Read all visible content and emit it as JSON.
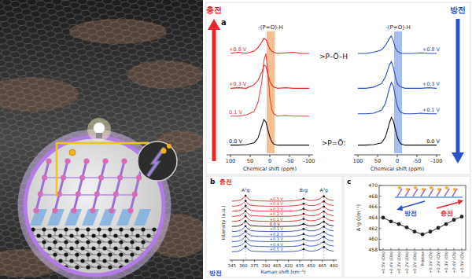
{
  "chart_data": [
    {
      "type": "line",
      "panel": "a",
      "title": "충전",
      "x_label": "Chemical shift (ppm)",
      "x": [
        100,
        80,
        60,
        40,
        30,
        20,
        15,
        10,
        5,
        0,
        -5,
        -10,
        -20,
        -40,
        -60,
        -80,
        -100
      ],
      "xlim": [
        110,
        -110
      ],
      "xticks": [
        100,
        50,
        0,
        -50,
        -100
      ],
      "ylim": [
        0,
        10.5
      ],
      "tick_labels": "x",
      "highlight": {
        "range": [
          8,
          -12
        ],
        "label": "-(P=O)-H"
      },
      "annotations": [
        ">P–Ö–H",
        ">P=Ö:"
      ],
      "series": [
        {
          "name": "+0.8 V",
          "color": "#e8262a",
          "values": [
            8.6,
            8.7,
            8.6,
            8.8,
            9.1,
            9.6,
            9.9,
            9.8,
            9.4,
            9.0,
            8.8,
            8.7,
            8.6,
            8.65,
            8.7,
            8.6,
            8.6
          ]
        },
        {
          "name": "+0.3 V",
          "color": "#e8262a",
          "values": [
            5.6,
            5.65,
            5.6,
            5.9,
            6.3,
            7.0,
            7.6,
            7.5,
            6.8,
            6.2,
            5.9,
            5.7,
            5.6,
            5.65,
            5.6,
            5.6,
            5.6
          ]
        },
        {
          "name": "0.1 V",
          "color": "#ee4444",
          "values": [
            3.2,
            3.2,
            3.3,
            3.6,
            4.4,
            6.2,
            8.0,
            8.6,
            7.0,
            4.8,
            3.8,
            3.4,
            3.2,
            3.25,
            3.2,
            3.2,
            3.2
          ]
        },
        {
          "name": "0.0 V",
          "color": "#111111",
          "values": [
            0.7,
            0.7,
            0.75,
            0.9,
            1.3,
            2.4,
            2.9,
            2.7,
            2.0,
            1.4,
            1.0,
            0.8,
            0.7,
            0.7,
            0.7,
            0.7,
            0.7
          ]
        }
      ]
    },
    {
      "type": "line",
      "title": "방전",
      "x_label": "Chemical shift (ppm)",
      "x": [
        100,
        80,
        60,
        40,
        30,
        20,
        15,
        10,
        5,
        0,
        -5,
        -10,
        -20,
        -40,
        -60,
        -80,
        -100
      ],
      "xlim": [
        110,
        -110
      ],
      "xticks": [
        100,
        50,
        0,
        -50,
        -100
      ],
      "ylim": [
        0,
        10.5
      ],
      "tick_labels": "x",
      "highlight": {
        "range": [
          8,
          -12
        ],
        "label": "-(P=O)-H"
      },
      "series": [
        {
          "name": "+0.8 V",
          "color": "#2b4fc7",
          "values": [
            8.6,
            8.6,
            8.7,
            8.9,
            9.3,
            9.9,
            10.1,
            9.7,
            9.1,
            8.8,
            8.7,
            8.6,
            8.6,
            8.6,
            8.65,
            8.6,
            8.6
          ]
        },
        {
          "name": "+0.3 V",
          "color": "#2b4fc7",
          "values": [
            5.6,
            5.6,
            5.7,
            6.0,
            6.6,
            7.6,
            7.9,
            7.4,
            6.6,
            6.0,
            5.8,
            5.7,
            5.6,
            5.6,
            5.6,
            5.65,
            5.6
          ]
        },
        {
          "name": "+0.1 V",
          "color": "#2b4fc7",
          "values": [
            3.4,
            3.4,
            3.45,
            3.7,
            4.3,
            5.6,
            6.1,
            5.8,
            4.9,
            4.1,
            3.7,
            3.5,
            3.4,
            3.4,
            3.45,
            3.4,
            3.4
          ]
        },
        {
          "name": "0.0 V",
          "color": "#111111",
          "values": [
            0.7,
            0.7,
            0.75,
            0.9,
            1.4,
            2.6,
            3.1,
            2.8,
            2.1,
            1.4,
            1.0,
            0.8,
            0.7,
            0.7,
            0.7,
            0.7,
            0.7
          ]
        }
      ]
    },
    {
      "type": "line",
      "panel": "b",
      "x_label": "Raman shift (cm⁻¹)",
      "y_label": "Intensity (a.u.)",
      "annotations": [
        "충전",
        "방전"
      ],
      "x": [
        345,
        352,
        357,
        360,
        363,
        366,
        370,
        380,
        395,
        410,
        425,
        433,
        437,
        440,
        443,
        448,
        455,
        461,
        464,
        467,
        470,
        474,
        480
      ],
      "xlim": [
        342,
        484
      ],
      "xticks": [
        345,
        360,
        375,
        390,
        405,
        420,
        435,
        450,
        465,
        480
      ],
      "ylim": [
        0,
        13
      ],
      "tick_labels": "x",
      "peaks": [
        {
          "x": 363,
          "label": "A¹g"
        },
        {
          "x": 440,
          "label": "B₂g"
        },
        {
          "x": 467,
          "label": "A²g"
        }
      ],
      "series": [
        {
          "name": "+0.5 V",
          "color": "#e8262a",
          "values": [
            10.35,
            10.4,
            10.6,
            10.9,
            11.3,
            10.85,
            10.5,
            10.4,
            10.35,
            10.35,
            10.4,
            10.5,
            10.65,
            10.8,
            10.65,
            10.45,
            10.5,
            10.75,
            11.05,
            11.2,
            10.9,
            10.6,
            10.45
          ]
        },
        {
          "name": "+0.4 V",
          "color": "#e8262a",
          "values": [
            9.45,
            9.5,
            9.7,
            10,
            10.4,
            9.95,
            9.6,
            9.5,
            9.45,
            9.45,
            9.5,
            9.6,
            9.75,
            9.9,
            9.75,
            9.55,
            9.6,
            9.85,
            10.15,
            10.3,
            10,
            9.7,
            9.55
          ]
        },
        {
          "name": "+0.3 V",
          "color": "#e8262a",
          "values": [
            8.55,
            8.6,
            8.8,
            9.1,
            9.5,
            9.05,
            8.7,
            8.6,
            8.55,
            8.55,
            8.6,
            8.7,
            8.85,
            9,
            8.85,
            8.65,
            8.7,
            8.95,
            9.25,
            9.4,
            9.1,
            8.8,
            8.65
          ]
        },
        {
          "name": "+0.2 V",
          "color": "#e8262a",
          "values": [
            7.65,
            7.7,
            7.9,
            8.2,
            8.6,
            8.15,
            7.8,
            7.7,
            7.65,
            7.65,
            7.7,
            7.8,
            7.95,
            8.1,
            7.95,
            7.75,
            7.8,
            8.05,
            8.35,
            8.5,
            8.2,
            7.9,
            7.75
          ]
        },
        {
          "name": "+0.1 V",
          "color": "#e8262a",
          "values": [
            6.75,
            6.8,
            7,
            7.3,
            7.7,
            7.25,
            6.9,
            6.8,
            6.75,
            6.75,
            6.8,
            6.9,
            7.05,
            7.2,
            7.05,
            6.85,
            6.9,
            7.15,
            7.45,
            7.6,
            7.3,
            7,
            6.85
          ]
        },
        {
          "name": "0.0 V",
          "color": "#111111",
          "values": [
            5.85,
            5.9,
            6.1,
            6.4,
            6.8,
            6.35,
            6,
            5.9,
            5.85,
            5.85,
            5.9,
            6,
            6.15,
            6.3,
            6.15,
            5.95,
            6,
            6.25,
            6.55,
            6.7,
            6.4,
            6.1,
            5.95
          ]
        },
        {
          "name": "+0.1 V",
          "color": "#2b4fc7",
          "values": [
            4.95,
            5,
            5.2,
            5.5,
            5.9,
            5.45,
            5.1,
            5,
            4.95,
            4.95,
            5,
            5.1,
            5.25,
            5.4,
            5.25,
            5.05,
            5.1,
            5.35,
            5.65,
            5.8,
            5.5,
            5.2,
            5.05
          ]
        },
        {
          "name": "+0.2 V",
          "color": "#2b4fc7",
          "values": [
            4.05,
            4.1,
            4.3,
            4.6,
            5,
            4.55,
            4.2,
            4.1,
            4.05,
            4.05,
            4.1,
            4.2,
            4.35,
            4.5,
            4.35,
            4.15,
            4.2,
            4.45,
            4.75,
            4.9,
            4.6,
            4.3,
            4.15
          ]
        },
        {
          "name": "+0.3 V",
          "color": "#2b4fc7",
          "values": [
            3.15,
            3.2,
            3.4,
            3.7,
            4.1,
            3.65,
            3.3,
            3.2,
            3.15,
            3.15,
            3.2,
            3.3,
            3.45,
            3.6,
            3.45,
            3.25,
            3.3,
            3.55,
            3.85,
            4,
            3.7,
            3.4,
            3.25
          ]
        },
        {
          "name": "+0.4 V",
          "color": "#2b4fc7",
          "values": [
            2.25,
            2.3,
            2.5,
            2.8,
            3.2,
            2.75,
            2.4,
            2.3,
            2.25,
            2.25,
            2.3,
            2.4,
            2.55,
            2.7,
            2.55,
            2.35,
            2.4,
            2.65,
            2.95,
            3.1,
            2.8,
            2.5,
            2.35
          ]
        },
        {
          "name": "+0.5 V",
          "color": "#2b4fc7",
          "values": [
            1.35,
            1.4,
            1.6,
            1.9,
            2.3,
            1.85,
            1.5,
            1.4,
            1.35,
            1.35,
            1.4,
            1.5,
            1.65,
            1.8,
            1.65,
            1.45,
            1.5,
            1.75,
            2.05,
            2.2,
            1.9,
            1.6,
            1.45
          ]
        }
      ]
    },
    {
      "type": "line",
      "panel": "c",
      "y_label": "A¹g (cm⁻¹)",
      "annotations": [
        "방전",
        "충전"
      ],
      "categories": [
        "+0.5V (Dis)",
        "+0.4V (Dis)",
        "+0.3V (Dis)",
        "+0.2V (Dis)",
        "+0.1V (Dis)",
        "Pristine",
        "+0.1V (Ch)",
        "+0.2V (Ch)",
        "+0.3V (Ch)",
        "+0.4V (Ch)",
        "+0.5V (Ch)"
      ],
      "values": [
        464.0,
        463.3,
        462.8,
        462.2,
        461.4,
        460.9,
        461.4,
        462.1,
        462.8,
        463.6,
        464.2
      ],
      "ylim": [
        458,
        470
      ],
      "yticks": [
        458,
        460,
        462,
        464,
        466,
        468,
        470
      ],
      "color": "#222222",
      "marker": "circle"
    }
  ]
}
